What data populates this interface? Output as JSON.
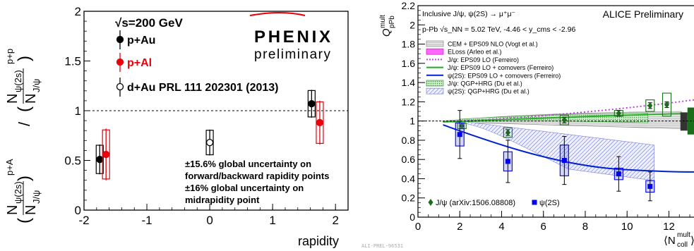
{
  "chart_data": [
    {
      "type": "scatter",
      "title": "",
      "xlabel": "rapidity",
      "ylabel_lines": [
        "N",
        "ψ(2s)",
        "p+A",
        "(",
        "N",
        "J/ψ",
        ")",
        "/",
        "(",
        "N",
        "ψ(2s)",
        "p+p",
        "N",
        "J/ψ",
        ")"
      ],
      "ylabel": "",
      "xlim": [
        -2,
        2.2
      ],
      "ylim": [
        0,
        2
      ],
      "xticks": [
        -2,
        -1,
        0,
        1,
        2
      ],
      "yticks": [
        0,
        0.5,
        1,
        1.5,
        2
      ],
      "xtick_labels": [
        "-2",
        "-1",
        "0",
        "1",
        "2"
      ],
      "ytick_labels": [
        "0",
        "0.5",
        "1",
        "1.5",
        "2"
      ],
      "reference_line": 1,
      "header": "√s=200 GeV",
      "logo": "PHENIX",
      "logo_sub": "preliminary",
      "series": [
        {
          "name": "p+Au",
          "color": "#000000",
          "marker": "filled",
          "points": [
            {
              "x": -1.75,
              "y": 0.51,
              "err": 0.15
            },
            {
              "x": 1.62,
              "y": 1.07,
              "err": 0.14
            }
          ]
        },
        {
          "name": "p+Al",
          "color": "#e8000b",
          "marker": "filled",
          "points": [
            {
              "x": -1.65,
              "y": 0.56,
              "err": 0.26
            },
            {
              "x": 1.75,
              "y": 0.88,
              "err": 0.22
            }
          ]
        },
        {
          "name": "d+Au PRL 111 202301 (2013)",
          "color": "#000000",
          "marker": "open",
          "points": [
            {
              "x": 0.0,
              "y": 0.68,
              "err": 0.13
            }
          ]
        }
      ],
      "annotations": [
        "±15.6% global uncertainty on",
        "forward/backward rapidity points",
        "±16% global uncertainty on",
        "midrapidity point"
      ]
    },
    {
      "type": "scatter",
      "title": "ALICE Preliminary",
      "xlabel": "⟨N_coll^mult⟩",
      "ylabel": "Q_pPb^mult",
      "xlim": [
        0,
        13.2
      ],
      "ylim": [
        0,
        2.2
      ],
      "xticks": [
        0,
        2,
        4,
        6,
        8,
        10,
        12
      ],
      "yticks": [
        0,
        0.2,
        0.4,
        0.6,
        0.8,
        1,
        1.2,
        1.4,
        1.6,
        1.8,
        2,
        2.2
      ],
      "xtick_labels": [
        "0",
        "2",
        "4",
        "6",
        "8",
        "10",
        "12"
      ],
      "ytick_labels": [
        "0",
        "0.2",
        "0.4",
        "0.6",
        "0.8",
        "1",
        "1.2",
        "1.4",
        "1.6",
        "1.8",
        "2",
        "2.2"
      ],
      "reference_line": 1,
      "header_lines": [
        "Inclusive J/ψ, ψ(2S) → μ⁺μ⁻",
        "p-Pb √s_NN = 5.02 TeV, -4.46 < y_cms < -2.96"
      ],
      "model_legend": [
        "CEM + EPS09 NLO (Vogt et al.)",
        "ELoss (Arleo et al.)",
        "J/ψ: EPS09 LO (Ferreiro)",
        "J/ψ: EPS09 LO + comovers (Ferreiro)",
        "ψ(2S): EPS09 LO + comovers (Ferreiro)",
        "J/ψ: QGP+HRG (Du et al.)",
        "ψ(2S): QGP+HRG (Du et al.)"
      ],
      "series": [
        {
          "name": "J/ψ (arXiv:1506.08808)",
          "color": "#1a6e1a",
          "marker": "diamond",
          "points": [
            {
              "x": 2.1,
              "y": 0.95,
              "err": 0.03,
              "sys": 0.03
            },
            {
              "x": 4.3,
              "y": 0.88,
              "err": 0.03,
              "sys": 0.05
            },
            {
              "x": 7.0,
              "y": 1.01,
              "err": 0.03,
              "sys": 0.05
            },
            {
              "x": 9.6,
              "y": 1.08,
              "err": 0.03,
              "sys": 0.03
            },
            {
              "x": 11.1,
              "y": 1.16,
              "err": 0.03,
              "sys": 0.06
            },
            {
              "x": 11.9,
              "y": 1.17,
              "err": 0.03,
              "sys": 0.12
            }
          ]
        },
        {
          "name": "ψ(2S)",
          "color": "#0000ee",
          "marker": "square",
          "points": [
            {
              "x": 2.0,
              "y": 0.86,
              "err": 0.25,
              "sys": 0.12
            },
            {
              "x": 4.3,
              "y": 0.58,
              "err": 0.22,
              "sys": 0.1
            },
            {
              "x": 7.0,
              "y": 0.59,
              "err": 0.25,
              "sys": 0.16
            },
            {
              "x": 9.6,
              "y": 0.45,
              "err": 0.18,
              "sys": 0.06
            },
            {
              "x": 11.1,
              "y": 0.32,
              "err": 0.15,
              "sys": 0.06
            }
          ]
        }
      ],
      "footer_tag": "ALI-PREL-96531"
    }
  ]
}
